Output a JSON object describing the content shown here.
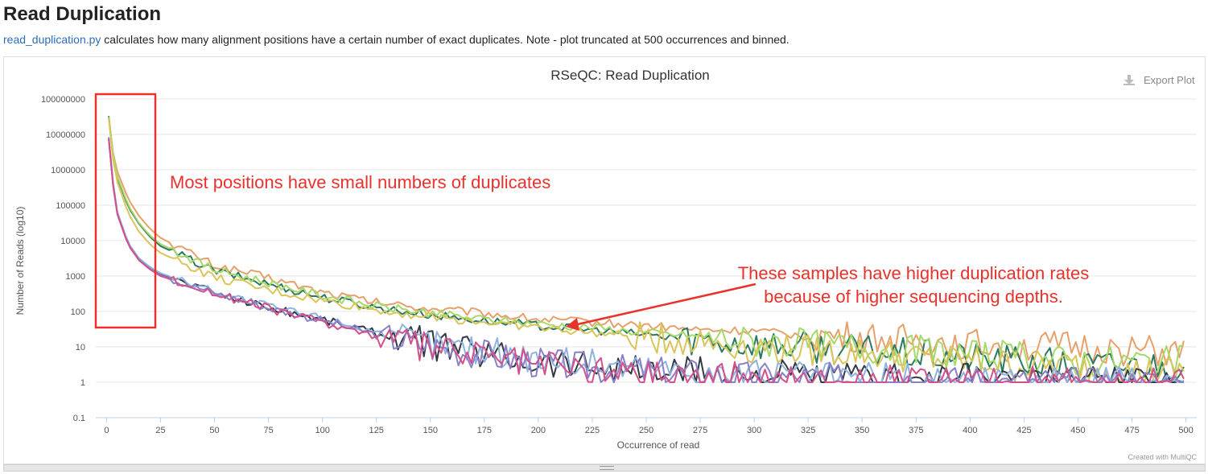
{
  "page": {
    "title": "Read Duplication",
    "description_link": "read_duplication.py",
    "description_text": " calculates how many alignment positions have a certain number of exact duplicates. Note - plot truncated at 500 occurrences and binned."
  },
  "plot": {
    "export_label": "Export Plot",
    "credit": "Created with MultiQC"
  },
  "annotations": {
    "box_text": "Most positions have small numbers of duplicates",
    "arrow_text_line1": "These samples have higher duplication rates",
    "arrow_text_line2": "because of higher sequencing depths.",
    "color": "#e8322c"
  },
  "chart_data": {
    "type": "line",
    "title": "RSeQC: Read Duplication",
    "xlabel": "Occurrence of read",
    "ylabel": "Number of Reads (log10)",
    "xlim": [
      -5,
      505
    ],
    "ylim": [
      0.1,
      100000000
    ],
    "yscale": "log",
    "grid": true,
    "legend": "none",
    "xticks": [
      0,
      25,
      50,
      75,
      100,
      125,
      150,
      175,
      200,
      225,
      250,
      275,
      300,
      325,
      350,
      375,
      400,
      425,
      450,
      475,
      500
    ],
    "yticks": [
      0.1,
      1,
      10,
      100,
      1000,
      10000,
      100000,
      1000000,
      10000000,
      100000000
    ],
    "ytick_labels": [
      "0.1",
      "1",
      "10",
      "100",
      "1000",
      "10000",
      "100000",
      "1000000",
      "10000000",
      "100000000"
    ],
    "series": [
      {
        "color": "#e8a06a",
        "points": [
          [
            1,
            30000000
          ],
          [
            3,
            3000000
          ],
          [
            5,
            900000
          ],
          [
            10,
            150000
          ],
          [
            15,
            50000
          ],
          [
            20,
            22000
          ],
          [
            25,
            12000
          ],
          [
            50,
            2000
          ],
          [
            75,
            900
          ],
          [
            100,
            350
          ],
          [
            125,
            180
          ],
          [
            150,
            120
          ],
          [
            175,
            90
          ],
          [
            200,
            60
          ],
          [
            225,
            50
          ],
          [
            250,
            40
          ],
          [
            275,
            30
          ],
          [
            300,
            28
          ],
          [
            325,
            20
          ],
          [
            350,
            18
          ],
          [
            375,
            15
          ],
          [
            400,
            12
          ],
          [
            425,
            10
          ],
          [
            450,
            10
          ],
          [
            475,
            8
          ],
          [
            500,
            6
          ]
        ]
      },
      {
        "color": "#2b7a5e",
        "points": [
          [
            1,
            33000000
          ],
          [
            3,
            2500000
          ],
          [
            5,
            600000
          ],
          [
            10,
            90000
          ],
          [
            15,
            30000
          ],
          [
            20,
            13000
          ],
          [
            25,
            7000
          ],
          [
            50,
            1400
          ],
          [
            75,
            600
          ],
          [
            100,
            250
          ],
          [
            125,
            130
          ],
          [
            150,
            80
          ],
          [
            175,
            55
          ],
          [
            200,
            40
          ],
          [
            225,
            30
          ],
          [
            250,
            22
          ],
          [
            275,
            16
          ],
          [
            300,
            12
          ],
          [
            325,
            10
          ],
          [
            350,
            8
          ],
          [
            375,
            6
          ],
          [
            400,
            5
          ],
          [
            425,
            4
          ],
          [
            450,
            3
          ],
          [
            475,
            3
          ],
          [
            500,
            3
          ]
        ]
      },
      {
        "color": "#a6d96a",
        "points": [
          [
            1,
            31000000
          ],
          [
            3,
            2700000
          ],
          [
            5,
            650000
          ],
          [
            10,
            100000
          ],
          [
            15,
            32000
          ],
          [
            20,
            14000
          ],
          [
            25,
            8000
          ],
          [
            50,
            1500
          ],
          [
            75,
            650
          ],
          [
            100,
            280
          ],
          [
            125,
            140
          ],
          [
            150,
            90
          ],
          [
            175,
            60
          ],
          [
            200,
            45
          ],
          [
            225,
            35
          ],
          [
            250,
            25
          ],
          [
            275,
            20
          ],
          [
            300,
            14
          ],
          [
            325,
            12
          ],
          [
            350,
            10
          ],
          [
            375,
            8
          ],
          [
            400,
            6
          ],
          [
            425,
            5
          ],
          [
            450,
            4
          ],
          [
            475,
            4
          ],
          [
            500,
            4
          ]
        ]
      },
      {
        "color": "#d9c55a",
        "points": [
          [
            1,
            28000000
          ],
          [
            3,
            2000000
          ],
          [
            5,
            450000
          ],
          [
            10,
            60000
          ],
          [
            15,
            18000
          ],
          [
            20,
            8000
          ],
          [
            25,
            4500
          ],
          [
            50,
            900
          ],
          [
            75,
            400
          ],
          [
            100,
            200
          ],
          [
            125,
            110
          ],
          [
            150,
            70
          ],
          [
            175,
            50
          ],
          [
            200,
            35
          ],
          [
            225,
            25
          ],
          [
            250,
            18
          ],
          [
            275,
            14
          ],
          [
            300,
            10
          ],
          [
            325,
            8
          ],
          [
            350,
            7
          ],
          [
            375,
            5
          ],
          [
            400,
            4
          ],
          [
            425,
            3
          ],
          [
            450,
            3
          ],
          [
            475,
            2
          ],
          [
            500,
            2
          ]
        ]
      },
      {
        "color": "#333a44",
        "points": [
          [
            1,
            8000000
          ],
          [
            3,
            400000
          ],
          [
            5,
            60000
          ],
          [
            10,
            8000
          ],
          [
            15,
            3000
          ],
          [
            20,
            1700
          ],
          [
            25,
            1100
          ],
          [
            50,
            350
          ],
          [
            75,
            130
          ],
          [
            100,
            60
          ],
          [
            125,
            25
          ],
          [
            150,
            12
          ],
          [
            175,
            7
          ],
          [
            200,
            4
          ],
          [
            225,
            3
          ],
          [
            250,
            2
          ],
          [
            275,
            2
          ],
          [
            300,
            1.5
          ],
          [
            325,
            1.5
          ],
          [
            350,
            1.3
          ],
          [
            375,
            1.2
          ],
          [
            400,
            1.2
          ],
          [
            425,
            1.1
          ],
          [
            450,
            1
          ],
          [
            475,
            1
          ],
          [
            500,
            1
          ]
        ]
      },
      {
        "color": "#8fb3df",
        "points": [
          [
            1,
            8500000
          ],
          [
            3,
            450000
          ],
          [
            5,
            65000
          ],
          [
            10,
            8500
          ],
          [
            15,
            3200
          ],
          [
            20,
            1800
          ],
          [
            25,
            1200
          ],
          [
            50,
            370
          ],
          [
            75,
            140
          ],
          [
            100,
            65
          ],
          [
            125,
            27
          ],
          [
            150,
            13
          ],
          [
            175,
            8
          ],
          [
            200,
            5
          ],
          [
            225,
            3.5
          ],
          [
            250,
            2.5
          ],
          [
            275,
            2
          ],
          [
            300,
            1.6
          ],
          [
            325,
            1.5
          ],
          [
            350,
            1.4
          ],
          [
            375,
            1.3
          ],
          [
            400,
            1.2
          ],
          [
            425,
            1.1
          ],
          [
            450,
            1
          ],
          [
            475,
            1
          ],
          [
            500,
            1
          ]
        ]
      },
      {
        "color": "#8c7fc9",
        "points": [
          [
            1,
            7800000
          ],
          [
            3,
            380000
          ],
          [
            5,
            58000
          ],
          [
            10,
            7800
          ],
          [
            15,
            2900
          ],
          [
            20,
            1600
          ],
          [
            25,
            1050
          ],
          [
            50,
            330
          ],
          [
            75,
            125
          ],
          [
            100,
            55
          ],
          [
            125,
            22
          ],
          [
            150,
            10
          ],
          [
            175,
            6
          ],
          [
            200,
            3.5
          ],
          [
            225,
            2.5
          ],
          [
            250,
            2
          ],
          [
            275,
            1.7
          ],
          [
            300,
            1.4
          ],
          [
            325,
            1.3
          ],
          [
            350,
            1.2
          ],
          [
            375,
            1.1
          ],
          [
            400,
            1.1
          ],
          [
            425,
            1
          ],
          [
            450,
            1
          ],
          [
            475,
            1
          ],
          [
            500,
            1
          ]
        ]
      },
      {
        "color": "#d4508a",
        "points": [
          [
            1,
            7500000
          ],
          [
            3,
            360000
          ],
          [
            5,
            55000
          ],
          [
            10,
            7500
          ],
          [
            15,
            2800
          ],
          [
            20,
            1550
          ],
          [
            25,
            1000
          ],
          [
            50,
            320
          ],
          [
            75,
            120
          ],
          [
            100,
            50
          ],
          [
            125,
            20
          ],
          [
            150,
            9
          ],
          [
            175,
            5.5
          ],
          [
            200,
            3.2
          ],
          [
            225,
            2.3
          ],
          [
            250,
            1.8
          ],
          [
            275,
            1.5
          ],
          [
            300,
            1.3
          ],
          [
            325,
            1.2
          ],
          [
            350,
            1.1
          ],
          [
            375,
            1.05
          ],
          [
            400,
            1
          ],
          [
            425,
            1
          ],
          [
            450,
            1
          ],
          [
            475,
            1
          ],
          [
            500,
            1
          ]
        ]
      }
    ]
  }
}
